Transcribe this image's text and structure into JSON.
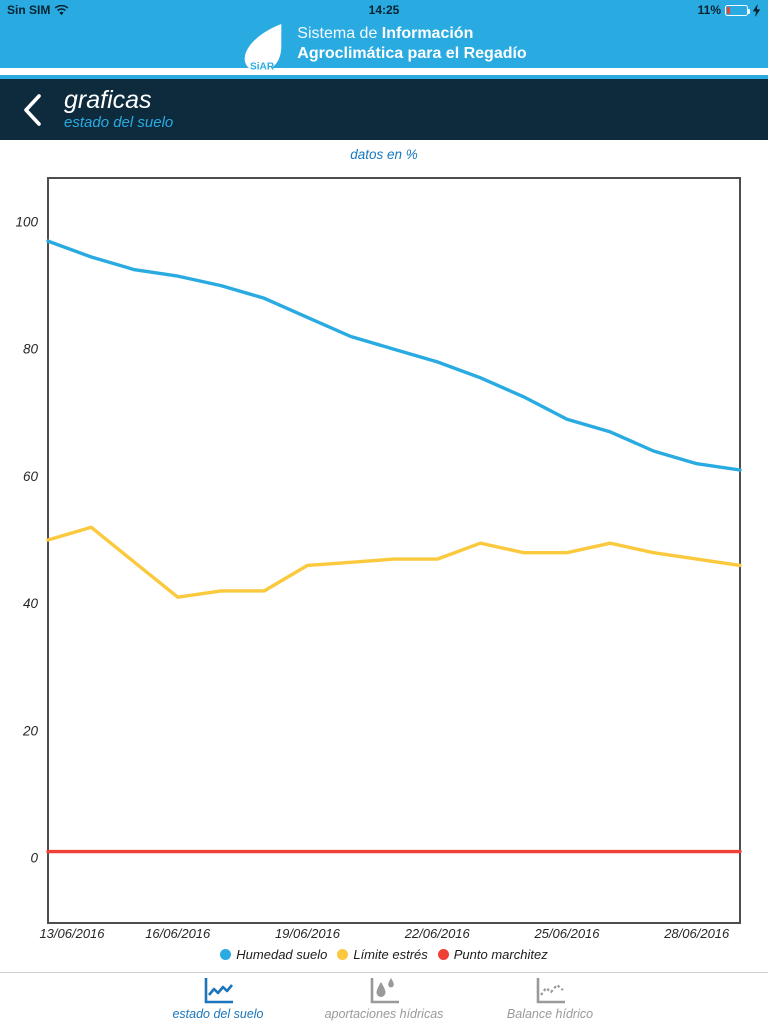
{
  "colors": {
    "accent_cyan": "#29abe2",
    "navy": "#0e2b3d",
    "active_tab_blue": "#1b75bc",
    "inactive_gray": "#9a9a9a",
    "battery_red": "#f3422e",
    "chart_border": "#4d4d4d"
  },
  "status_bar": {
    "carrier": "Sin SIM",
    "time": "14:25",
    "battery_percent": "11%"
  },
  "header": {
    "logo_text": "SiAR",
    "title_line1_light": "Sistema de ",
    "title_line1_bold": "Información",
    "title_line2_bold": "Agroclimática para el Regadío"
  },
  "navbar": {
    "title": "graficas",
    "subtitle": "estado del suelo"
  },
  "chart_data": {
    "type": "line",
    "title": "datos en %",
    "start_date": "13/06/2016",
    "n_days": 17,
    "x_tick_labels": [
      "13/06/2016",
      "16/06/2016",
      "19/06/2016",
      "22/06/2016",
      "25/06/2016",
      "28/06/2016"
    ],
    "x_tick_days": [
      0,
      3,
      6,
      9,
      12,
      15
    ],
    "y_ticks": [
      0,
      20,
      40,
      60,
      80,
      100
    ],
    "ylim": [
      -10.5,
      107
    ],
    "grid": false,
    "legend_position": "bottom",
    "series": [
      {
        "name": "Humedad suelo",
        "color": "#29abe2",
        "values": [
          97,
          94.5,
          92.5,
          91.5,
          90,
          88,
          85,
          82,
          80,
          78,
          75.5,
          72.5,
          69,
          67,
          64,
          62,
          61
        ]
      },
      {
        "name": "Límite estrés",
        "color": "#fbc93d",
        "values": [
          50,
          52,
          46.5,
          41,
          42,
          42,
          46,
          46.5,
          47,
          47,
          49.5,
          48,
          48,
          49.5,
          48,
          47,
          46
        ]
      },
      {
        "name": "Punto marchitez",
        "color": "#ee4035",
        "values": [
          1,
          1,
          1,
          1,
          1,
          1,
          1,
          1,
          1,
          1,
          1,
          1,
          1,
          1,
          1,
          1,
          1
        ]
      }
    ]
  },
  "tabbar": {
    "items": [
      {
        "label": "estado del suelo",
        "active": true
      },
      {
        "label": "aportaciones hídricas",
        "active": false
      },
      {
        "label": "Balance hídrico",
        "active": false
      }
    ]
  }
}
